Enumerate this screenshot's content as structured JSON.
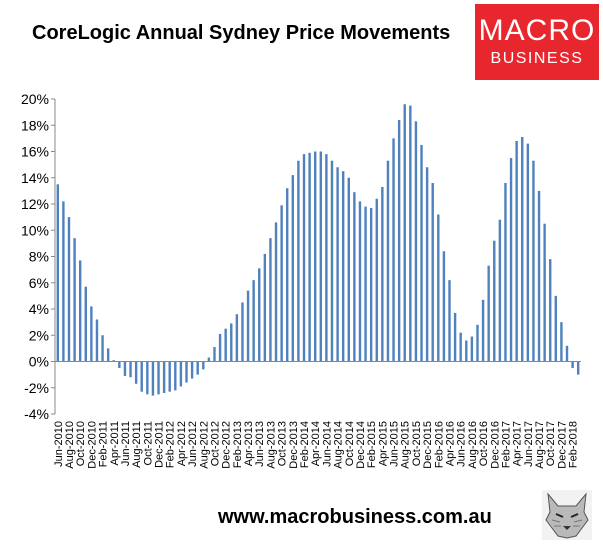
{
  "header": {
    "title": "CoreLogic Annual Sydney Price Movements"
  },
  "logo": {
    "line1": "MACRO",
    "line2": "BUSINESS"
  },
  "footer": {
    "url": "www.macrobusiness.com.au"
  },
  "chart_data": {
    "type": "bar",
    "title": "CoreLogic Annual Sydney Price Movements",
    "xlabel": "",
    "ylabel": "",
    "ylim": [
      -4,
      20
    ],
    "yticks": [
      "-4%",
      "-2%",
      "0%",
      "2%",
      "4%",
      "6%",
      "8%",
      "10%",
      "12%",
      "14%",
      "16%",
      "18%",
      "20%"
    ],
    "grid": false,
    "bar_color": "#4f81bd",
    "categories": [
      "Jun-2010",
      "Jul-2010",
      "Aug-2010",
      "Sep-2010",
      "Oct-2010",
      "Nov-2010",
      "Dec-2010",
      "Jan-2011",
      "Feb-2011",
      "Mar-2011",
      "Apr-2011",
      "May-2011",
      "Jun-2011",
      "Jul-2011",
      "Aug-2011",
      "Sep-2011",
      "Oct-2011",
      "Nov-2011",
      "Dec-2011",
      "Jan-2012",
      "Feb-2012",
      "Mar-2012",
      "Apr-2012",
      "May-2012",
      "Jun-2012",
      "Jul-2012",
      "Aug-2012",
      "Sep-2012",
      "Oct-2012",
      "Nov-2012",
      "Dec-2012",
      "Jan-2013",
      "Feb-2013",
      "Mar-2013",
      "Apr-2013",
      "May-2013",
      "Jun-2013",
      "Jul-2013",
      "Aug-2013",
      "Sep-2013",
      "Oct-2013",
      "Nov-2013",
      "Dec-2013",
      "Jan-2014",
      "Feb-2014",
      "Mar-2014",
      "Apr-2014",
      "May-2014",
      "Jun-2014",
      "Jul-2014",
      "Aug-2014",
      "Sep-2014",
      "Oct-2014",
      "Nov-2014",
      "Dec-2014",
      "Jan-2015",
      "Feb-2015",
      "Mar-2015",
      "Apr-2015",
      "May-2015",
      "Jun-2015",
      "Jul-2015",
      "Aug-2015",
      "Sep-2015",
      "Oct-2015",
      "Nov-2015",
      "Dec-2015",
      "Jan-2016",
      "Feb-2016",
      "Mar-2016",
      "Apr-2016",
      "May-2016",
      "Jun-2016",
      "Jul-2016",
      "Aug-2016",
      "Sep-2016",
      "Oct-2016",
      "Nov-2016",
      "Dec-2016",
      "Jan-2017",
      "Feb-2017",
      "Mar-2017",
      "Apr-2017",
      "May-2017",
      "Jun-2017",
      "Jul-2017",
      "Aug-2017",
      "Sep-2017",
      "Oct-2017",
      "Nov-2017",
      "Dec-2017",
      "Jan-2018",
      "Feb-2018",
      "Mar-2018"
    ],
    "values": [
      13.5,
      12.2,
      11.0,
      9.4,
      7.7,
      5.7,
      4.2,
      3.2,
      2.0,
      1.0,
      0.1,
      -0.5,
      -1.1,
      -1.2,
      -1.7,
      -2.3,
      -2.5,
      -2.6,
      -2.5,
      -2.4,
      -2.3,
      -2.2,
      -1.9,
      -1.6,
      -1.3,
      -1.0,
      -0.6,
      0.3,
      1.1,
      2.1,
      2.5,
      2.9,
      3.6,
      4.5,
      5.4,
      6.2,
      7.1,
      8.2,
      9.4,
      10.6,
      11.9,
      13.2,
      14.2,
      15.3,
      15.8,
      15.9,
      16.0,
      16.0,
      15.8,
      15.3,
      14.8,
      14.5,
      14.0,
      12.9,
      12.2,
      11.8,
      11.7,
      12.4,
      13.3,
      15.3,
      17.0,
      18.4,
      19.6,
      19.5,
      18.3,
      16.5,
      14.8,
      13.6,
      11.2,
      8.4,
      6.2,
      3.7,
      2.2,
      1.6,
      1.9,
      2.8,
      4.7,
      7.3,
      9.2,
      10.8,
      13.6,
      15.5,
      16.8,
      17.1,
      16.6,
      15.3,
      13.0,
      10.5,
      7.8,
      5.0,
      3.0,
      1.2,
      -0.5,
      -1.0
    ],
    "tick_labels": [
      "Jun-2010",
      "Aug-2010",
      "Oct-2010",
      "Dec-2010",
      "Feb-2011",
      "Apr-2011",
      "Jun-2011",
      "Aug-2011",
      "Oct-2011",
      "Dec-2011",
      "Feb-2012",
      "Apr-2012",
      "Jun-2012",
      "Aug-2012",
      "Oct-2012",
      "Dec-2012",
      "Feb-2013",
      "Apr-2013",
      "Jun-2013",
      "Aug-2013",
      "Oct-2013",
      "Dec-2013",
      "Feb-2014",
      "Apr-2014",
      "Jun-2014",
      "Aug-2014",
      "Oct-2014",
      "Dec-2014",
      "Feb-2015",
      "Apr-2015",
      "Jun-2015",
      "Aug-2015",
      "Oct-2015",
      "Dec-2015",
      "Feb-2016",
      "Apr-2016",
      "Jun-2016",
      "Aug-2016",
      "Oct-2016",
      "Dec-2016",
      "Feb-2017",
      "Apr-2017",
      "Jun-2017",
      "Aug-2017",
      "Oct-2017",
      "Dec-2017",
      "Feb-2018"
    ]
  }
}
